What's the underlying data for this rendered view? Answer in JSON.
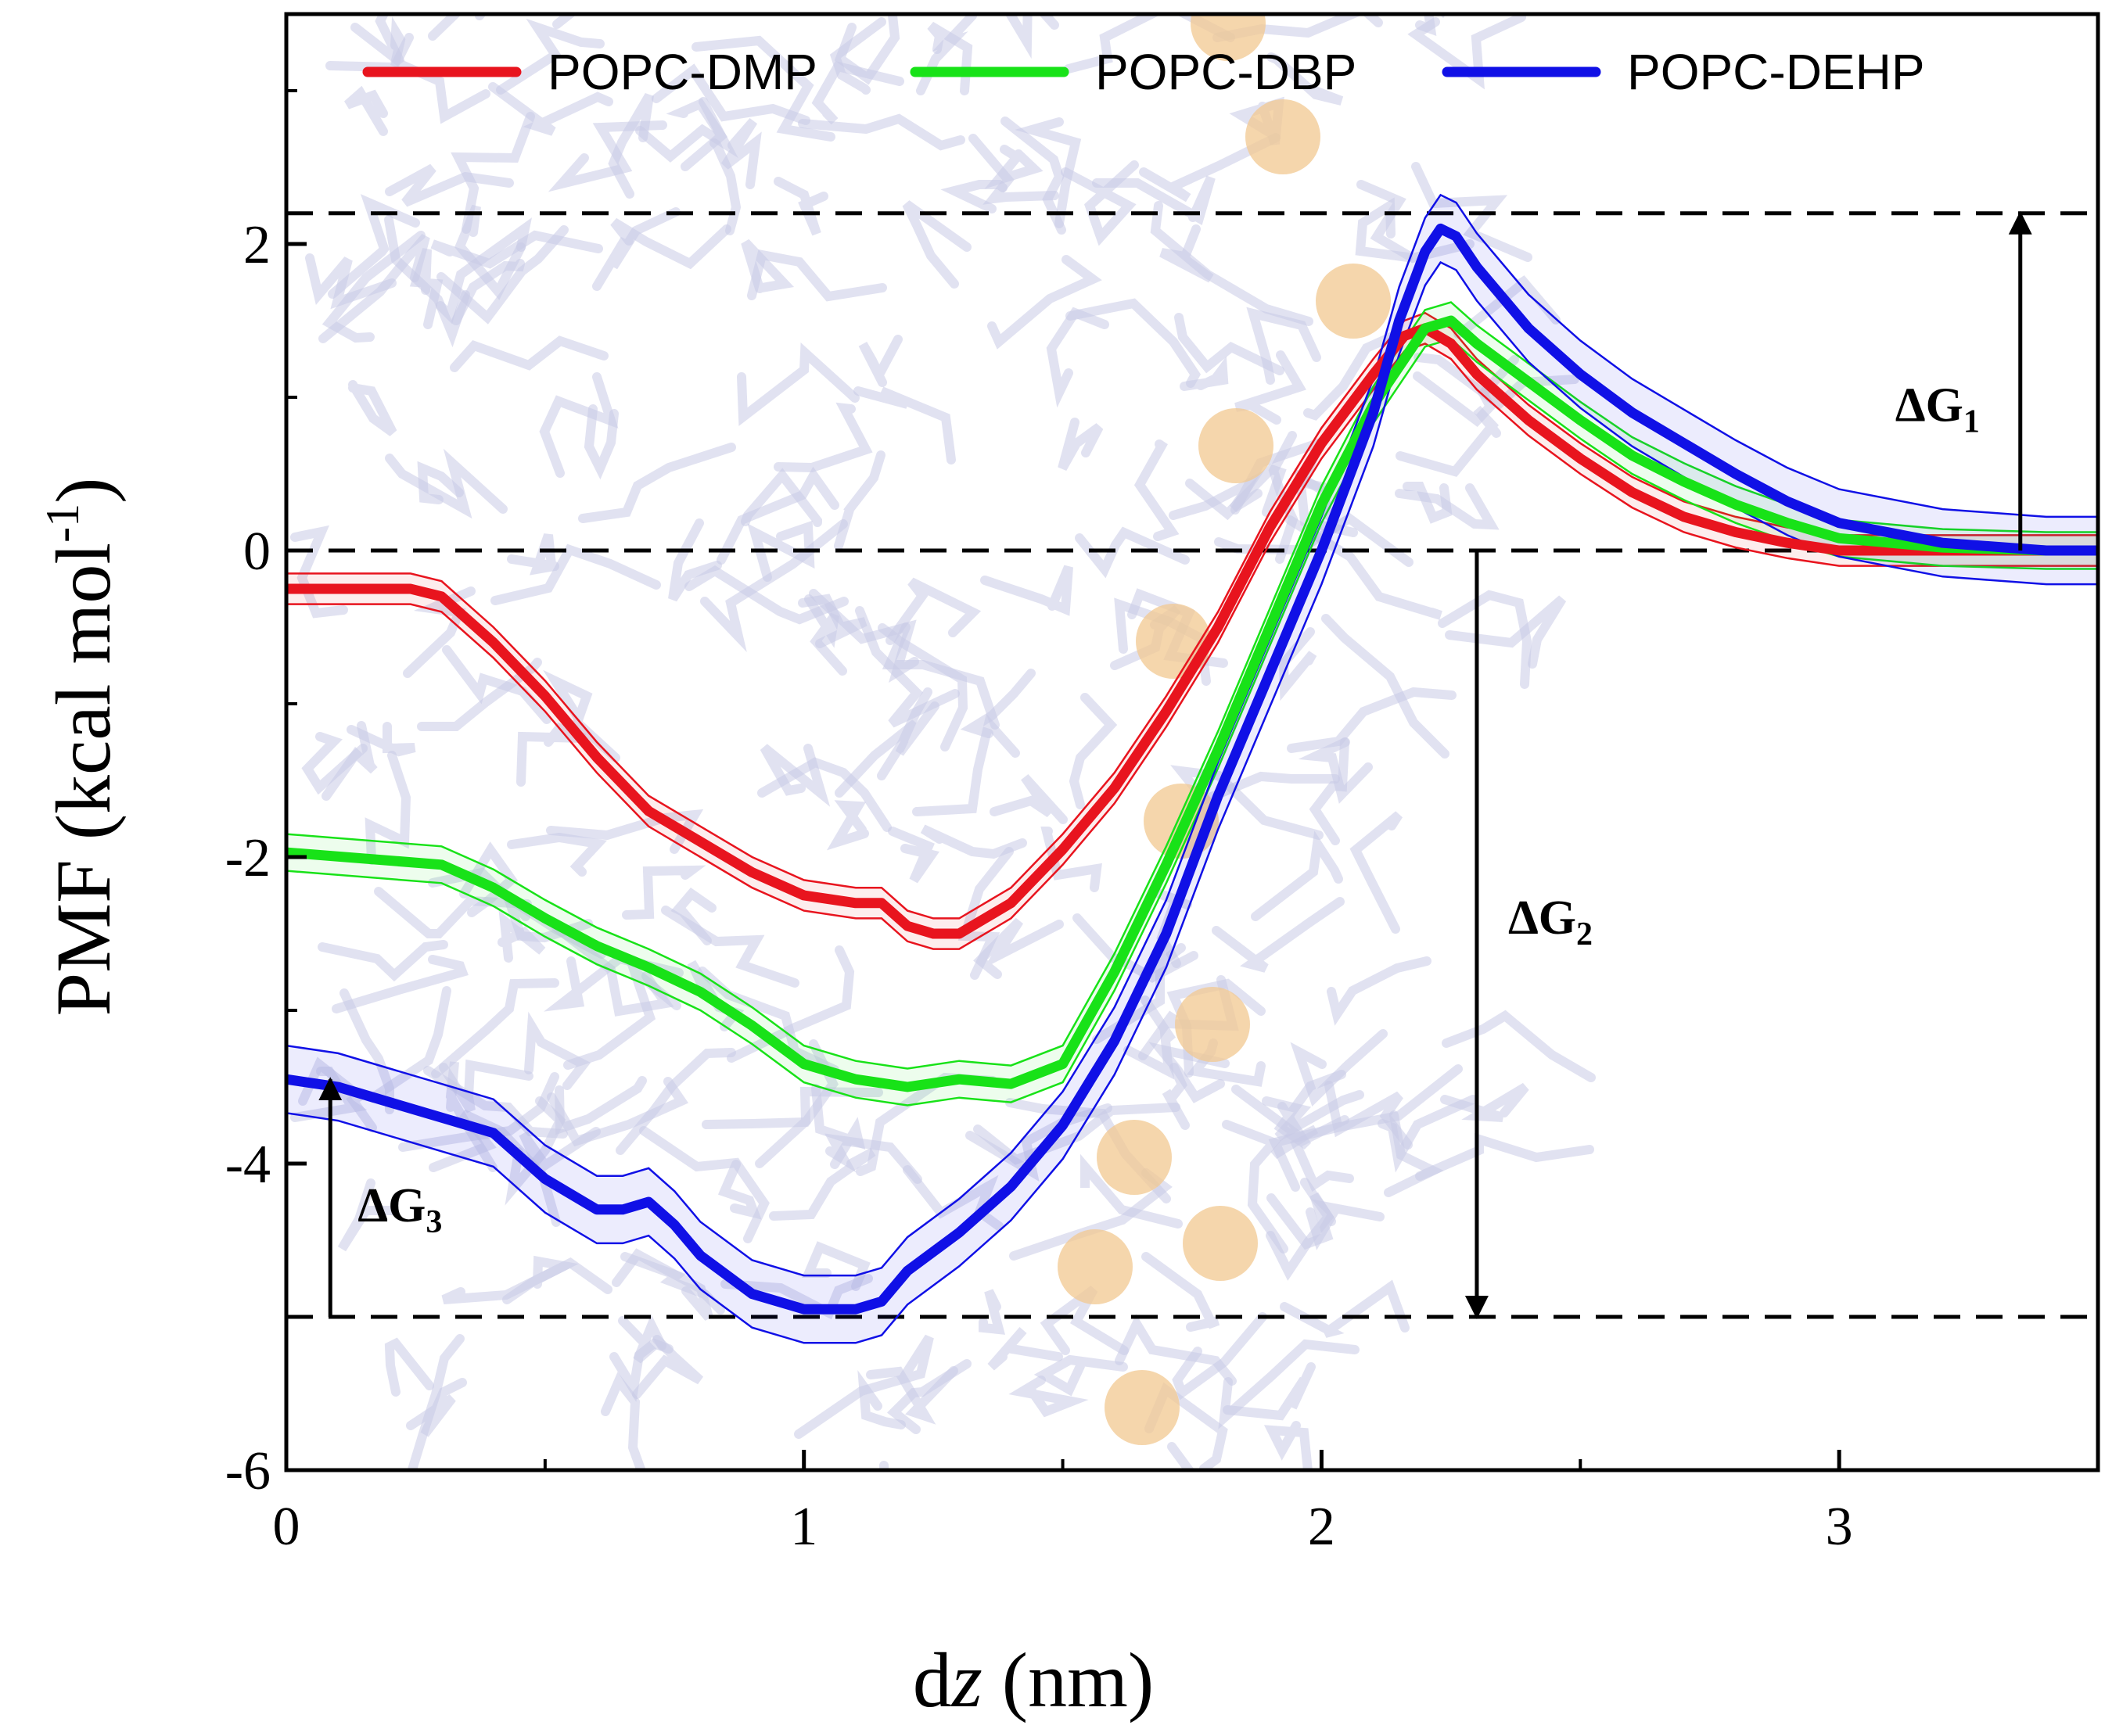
{
  "chart_data": {
    "type": "line",
    "title": "",
    "xlabel": "dz (nm)",
    "xlabel_main": "d",
    "xlabel_italic": "z",
    "xlabel_unit": " (nm)",
    "ylabel": "PMF (kcal mol-1)",
    "ylabel_main": "PMF (kcal  mol",
    "ylabel_sup": "-1",
    "ylabel_close": ")",
    "xlim": [
      0,
      3.5
    ],
    "ylim": [
      -6,
      3.5
    ],
    "xticks": [
      0,
      1,
      2,
      3
    ],
    "xtick_labels": [
      "0",
      "1",
      "2",
      "3"
    ],
    "yticks": [
      -6,
      -4,
      -2,
      0,
      2
    ],
    "ytick_labels": [
      "-6",
      "-4",
      "-2",
      "0",
      "2"
    ],
    "legend_position": "top",
    "series": [
      {
        "name": "POPC-DMP",
        "color": "#e8141e",
        "band": 0.1,
        "x": [
          0,
          0.24,
          0.3,
          0.4,
          0.5,
          0.6,
          0.7,
          0.8,
          0.9,
          1.0,
          1.1,
          1.15,
          1.2,
          1.25,
          1.3,
          1.4,
          1.5,
          1.6,
          1.7,
          1.8,
          1.9,
          2.0,
          2.1,
          2.16,
          2.2,
          2.25,
          2.3,
          2.4,
          2.5,
          2.6,
          2.7,
          2.8,
          2.9,
          3.0,
          3.2,
          3.4,
          3.5
        ],
        "y": [
          -0.25,
          -0.25,
          -0.3,
          -0.6,
          -0.95,
          -1.35,
          -1.7,
          -1.9,
          -2.1,
          -2.25,
          -2.3,
          -2.3,
          -2.45,
          -2.5,
          -2.5,
          -2.3,
          -1.95,
          -1.55,
          -1.05,
          -0.5,
          0.15,
          0.7,
          1.15,
          1.4,
          1.45,
          1.35,
          1.15,
          0.85,
          0.6,
          0.38,
          0.22,
          0.12,
          0.05,
          0.0,
          0.0,
          0.0,
          0.0
        ]
      },
      {
        "name": "POPC-DBP",
        "color": "#18e218",
        "band": 0.12,
        "x": [
          0,
          0.3,
          0.4,
          0.5,
          0.6,
          0.7,
          0.8,
          0.9,
          1.0,
          1.1,
          1.2,
          1.3,
          1.4,
          1.5,
          1.6,
          1.7,
          1.8,
          1.9,
          2.0,
          2.1,
          2.2,
          2.25,
          2.3,
          2.4,
          2.5,
          2.6,
          2.7,
          2.8,
          2.9,
          3.0,
          3.2,
          3.4,
          3.5
        ],
        "y": [
          -1.97,
          -2.05,
          -2.2,
          -2.4,
          -2.58,
          -2.72,
          -2.88,
          -3.1,
          -3.35,
          -3.45,
          -3.5,
          -3.45,
          -3.48,
          -3.35,
          -2.75,
          -2.05,
          -1.3,
          -0.5,
          0.3,
          0.95,
          1.45,
          1.5,
          1.35,
          1.1,
          0.85,
          0.62,
          0.45,
          0.3,
          0.18,
          0.08,
          0.02,
          0.0,
          0.0
        ]
      },
      {
        "name": "POPC-DEHP",
        "color": "#1010e6",
        "band": 0.22,
        "x": [
          0,
          0.1,
          0.2,
          0.3,
          0.4,
          0.5,
          0.6,
          0.65,
          0.7,
          0.75,
          0.8,
          0.9,
          1.0,
          1.1,
          1.15,
          1.2,
          1.3,
          1.4,
          1.5,
          1.6,
          1.7,
          1.8,
          1.9,
          2.0,
          2.1,
          2.15,
          2.2,
          2.23,
          2.26,
          2.3,
          2.4,
          2.5,
          2.6,
          2.7,
          2.8,
          2.9,
          3.0,
          3.2,
          3.4,
          3.5
        ],
        "y": [
          -3.45,
          -3.5,
          -3.6,
          -3.7,
          -3.8,
          -4.1,
          -4.3,
          -4.3,
          -4.25,
          -4.4,
          -4.6,
          -4.85,
          -4.95,
          -4.95,
          -4.9,
          -4.7,
          -4.45,
          -4.15,
          -3.75,
          -3.2,
          -2.5,
          -1.6,
          -0.8,
          0.0,
          0.9,
          1.5,
          1.95,
          2.1,
          2.05,
          1.85,
          1.45,
          1.15,
          0.9,
          0.7,
          0.5,
          0.32,
          0.18,
          0.05,
          0.0,
          0.0
        ]
      }
    ],
    "reference_lines": [
      {
        "y": 2.2,
        "style": "dashed"
      },
      {
        "y": 0,
        "style": "dashed"
      },
      {
        "y": -5,
        "style": "dashed"
      }
    ],
    "annotations": [
      {
        "id": "dg1",
        "label": "ΔG",
        "sub": "1",
        "x": 3.35,
        "y_from": 0,
        "y_to": 2.2
      },
      {
        "id": "dg2",
        "label": "ΔG",
        "sub": "2",
        "x": 2.3,
        "y_from": 0,
        "y_to": -5
      },
      {
        "id": "dg3",
        "label": "ΔG",
        "sub": "3",
        "x": 0.085,
        "y_from": -5,
        "y_to": -3.45
      }
    ]
  }
}
